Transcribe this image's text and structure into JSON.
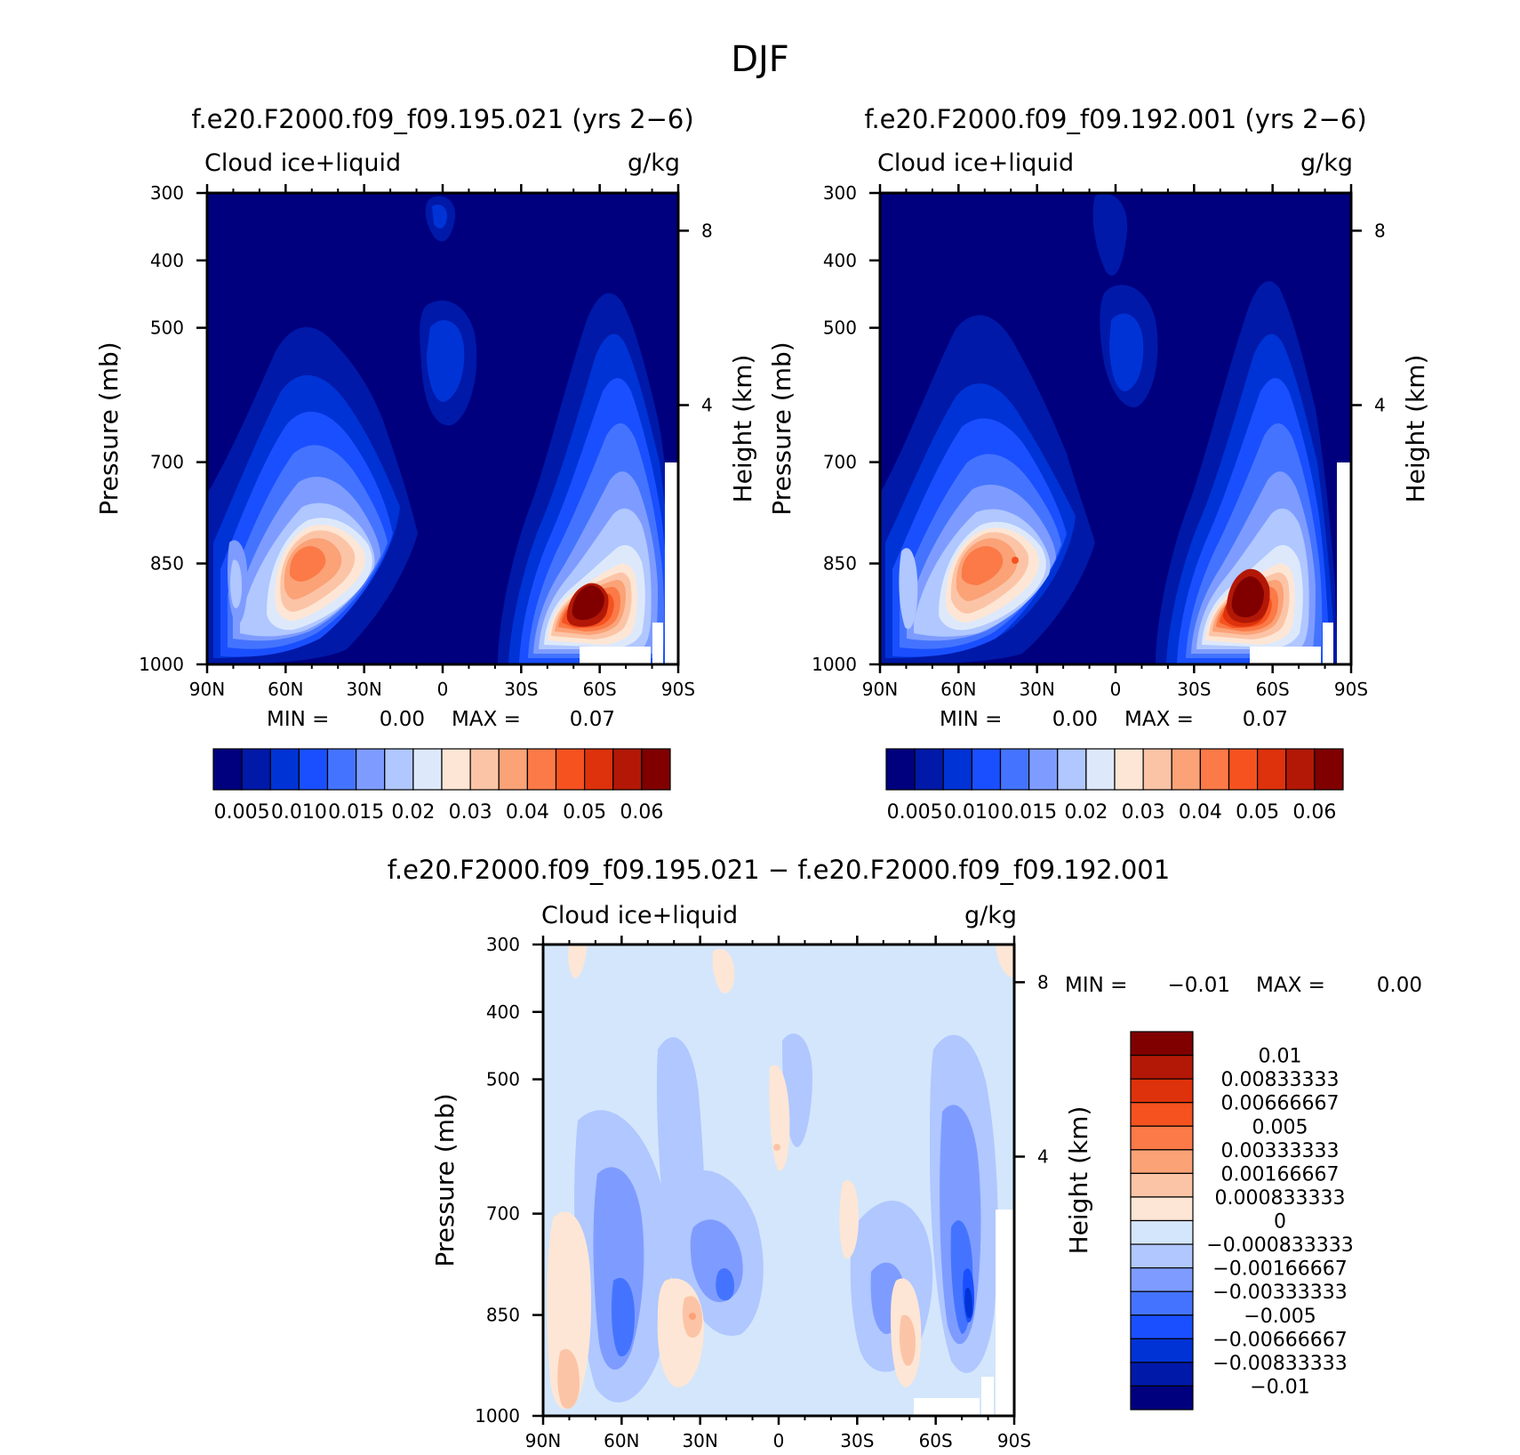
{
  "figure_title": "DJF",
  "chart_data": [
    {
      "type": "heatmap",
      "title": "f.e20.F2000.f09_f09.195.021 (yrs 2−6)",
      "variable": "Cloud ice+liquid",
      "units": "g/kg",
      "xlabel": "",
      "ylabel": "Pressure (mb)",
      "y2label": "Height (km)",
      "x_ticks": [
        "90N",
        "60N",
        "30N",
        "0",
        "30S",
        "60S",
        "90S"
      ],
      "y_ticks": [
        "300",
        "400",
        "500",
        "700",
        "850",
        "1000"
      ],
      "y2_ticks": [
        "8",
        "4"
      ],
      "min_label": "MIN =",
      "min_value": "0.00",
      "max_label": "MAX =",
      "max_value": "0.07",
      "colorbar_labels": [
        "0.005",
        "0.010",
        "0.015",
        "0.02",
        "0.03",
        "0.04",
        "0.05",
        "0.06"
      ],
      "colorbar_colors": [
        "#00007f",
        "#0019a8",
        "#0033d6",
        "#1a4fff",
        "#4474ff",
        "#7e9cff",
        "#b0c7ff",
        "#dde9fb",
        "#fde6d5",
        "#fcc4a6",
        "#fba277",
        "#fb7a47",
        "#f55220",
        "#dd320c",
        "#b31806",
        "#800000"
      ],
      "peaks": [
        {
          "lat": 52,
          "pressure": 850,
          "value": 0.047
        },
        {
          "lat": -55,
          "pressure": 880,
          "value": 0.07
        }
      ]
    },
    {
      "type": "heatmap",
      "title": "f.e20.F2000.f09_f09.192.001 (yrs 2−6)",
      "variable": "Cloud ice+liquid",
      "units": "g/kg",
      "xlabel": "",
      "ylabel": "Pressure (mb)",
      "y2label": "Height (km)",
      "x_ticks": [
        "90N",
        "60N",
        "30N",
        "0",
        "30S",
        "60S",
        "90S"
      ],
      "y_ticks": [
        "300",
        "400",
        "500",
        "700",
        "850",
        "1000"
      ],
      "y2_ticks": [
        "8",
        "4"
      ],
      "min_label": "MIN =",
      "min_value": "0.00",
      "max_label": "MAX =",
      "max_value": "0.07",
      "colorbar_labels": [
        "0.005",
        "0.010",
        "0.015",
        "0.02",
        "0.03",
        "0.04",
        "0.05",
        "0.06"
      ],
      "colorbar_colors": [
        "#00007f",
        "#0019a8",
        "#0033d6",
        "#1a4fff",
        "#4474ff",
        "#7e9cff",
        "#b0c7ff",
        "#dde9fb",
        "#fde6d5",
        "#fcc4a6",
        "#fba277",
        "#fb7a47",
        "#f55220",
        "#dd320c",
        "#b31806",
        "#800000"
      ],
      "peaks": [
        {
          "lat": 57,
          "pressure": 850,
          "value": 0.05
        },
        {
          "lat": -55,
          "pressure": 880,
          "value": 0.07
        }
      ]
    },
    {
      "type": "heatmap",
      "title": "f.e20.F2000.f09_f09.195.021 − f.e20.F2000.f09_f09.192.001",
      "variable": "Cloud ice+liquid",
      "units": "g/kg",
      "xlabel": "",
      "ylabel": "Pressure (mb)",
      "y2label": "Height (km)",
      "x_ticks": [
        "90N",
        "60N",
        "30N",
        "0",
        "30S",
        "60S",
        "90S"
      ],
      "y_ticks": [
        "300",
        "400",
        "500",
        "700",
        "850",
        "1000"
      ],
      "y2_ticks": [
        "8",
        "4"
      ],
      "min_label": "MIN =",
      "min_value": "−0.01",
      "max_label": "MAX =",
      "max_value": "0.00",
      "colorbar_labels": [
        "0.01",
        "0.00833333",
        "0.00666667",
        "0.005",
        "0.00333333",
        "0.00166667",
        "0.000833333",
        "0",
        "−0.000833333",
        "−0.00166667",
        "−0.00333333",
        "−0.005",
        "−0.00666667",
        "−0.00833333",
        "−0.01"
      ],
      "colorbar_colors": [
        "#800000",
        "#b31806",
        "#dd320c",
        "#f55220",
        "#fb7a47",
        "#fba277",
        "#fcc4a6",
        "#fde6d5",
        "#d4e6fb",
        "#b0c7ff",
        "#7e9cff",
        "#4474ff",
        "#1a4fff",
        "#0033d6",
        "#0019a8",
        "#00007f"
      ],
      "background_value_color": "#d4e6fb"
    }
  ]
}
